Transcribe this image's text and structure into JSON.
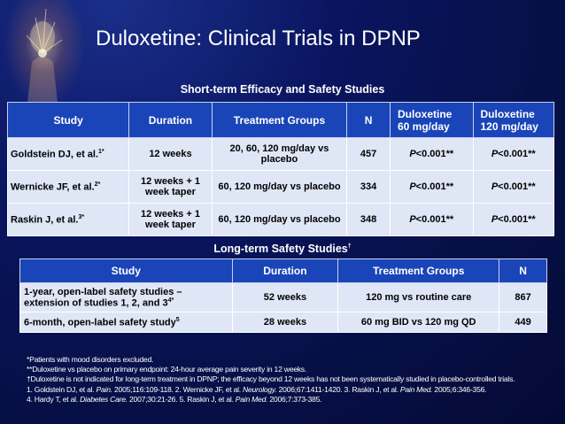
{
  "slide": {
    "title": "Duloxetine: Clinical Trials in DPNP",
    "short_term_heading": "Short-term Efficacy and Safety Studies",
    "long_term_heading": "Long-term Safety Studies",
    "long_term_heading_sup": "†"
  },
  "short_term": {
    "headers": [
      "Study",
      "Duration",
      "Treatment Groups",
      "N",
      "Duloxetine\n60 mg/day",
      "Duloxetine\n120 mg/day"
    ],
    "header_dul60_l1": "Duloxetine",
    "header_dul60_l2": "60 mg/day",
    "header_dul120_l1": "Duloxetine",
    "header_dul120_l2": "120 mg/day",
    "rows": [
      {
        "study": "Goldstein DJ, et al.",
        "sup": "1*",
        "duration": "12 weeks",
        "treatment": "20, 60, 120 mg/day vs placebo",
        "n": "457",
        "p60_italic": "P",
        "p60": "<0.001**",
        "p120_italic": "P",
        "p120": "<0.001**"
      },
      {
        "study": "Wernicke JF, et al.",
        "sup": "2*",
        "duration": "12 weeks + 1 week taper",
        "treatment": "60, 120 mg/day vs placebo",
        "n": "334",
        "p60_italic": "P",
        "p60": "<0.001**",
        "p120_italic": "P",
        "p120": "<0.001**"
      },
      {
        "study": "Raskin J, et al.",
        "sup": "3*",
        "duration": "12 weeks + 1 week taper",
        "treatment": "60, 120 mg/day vs placebo",
        "n": "348",
        "p60_italic": "P",
        "p60": "<0.001**",
        "p120_italic": "P",
        "p120": "<0.001**"
      }
    ]
  },
  "long_term": {
    "headers": [
      "Study",
      "Duration",
      "Treatment Groups",
      "N"
    ],
    "rows": [
      {
        "study": "1-year, open-label safety studies – extension of studies 1, 2, and 3",
        "sup": "4*",
        "duration": "52 weeks",
        "treatment": "120 mg vs routine care",
        "n": "867"
      },
      {
        "study": "6-month, open-label safety study",
        "sup": "5",
        "duration": "28 weeks",
        "treatment": "60 mg BID vs 120 mg QD",
        "n": "449"
      }
    ]
  },
  "footnotes": {
    "f1": "*Patients with mood disorders excluded.",
    "f2": "**Duloxetine vs placebo on primary endpoint: 24-hour average pain severity in 12 weeks.",
    "f3": "†Duloxetine is not indicated for long-term treatment in DPNP; the efficacy beyond 12 weeks has not been systematically studied in placebo-controlled trials.",
    "ref1_a": "1. Goldstein DJ, et al. ",
    "ref1_j": "Pain.",
    "ref1_b": " 2005;116:109-118. 2. Wernicke JF, et al. ",
    "ref2_j": "Neurology.",
    "ref2_b": " 2006;67:1411-1420. 3. Raskin J, et al. ",
    "ref3_j": "Pain Med.",
    "ref3_b": " 2005;6:346-356.",
    "ref4_a": "4. Hardy T, et al. ",
    "ref4_j": "Diabetes Care.",
    "ref4_b": " 2007;30:21-26. 5. Raskin J, et al. ",
    "ref5_j": "Pain Med.",
    "ref5_b": " 2006;7:373-385."
  },
  "colors": {
    "background": "#061046",
    "header_fill": "#1a45b8",
    "cell_fill": "#dfe6f6"
  }
}
